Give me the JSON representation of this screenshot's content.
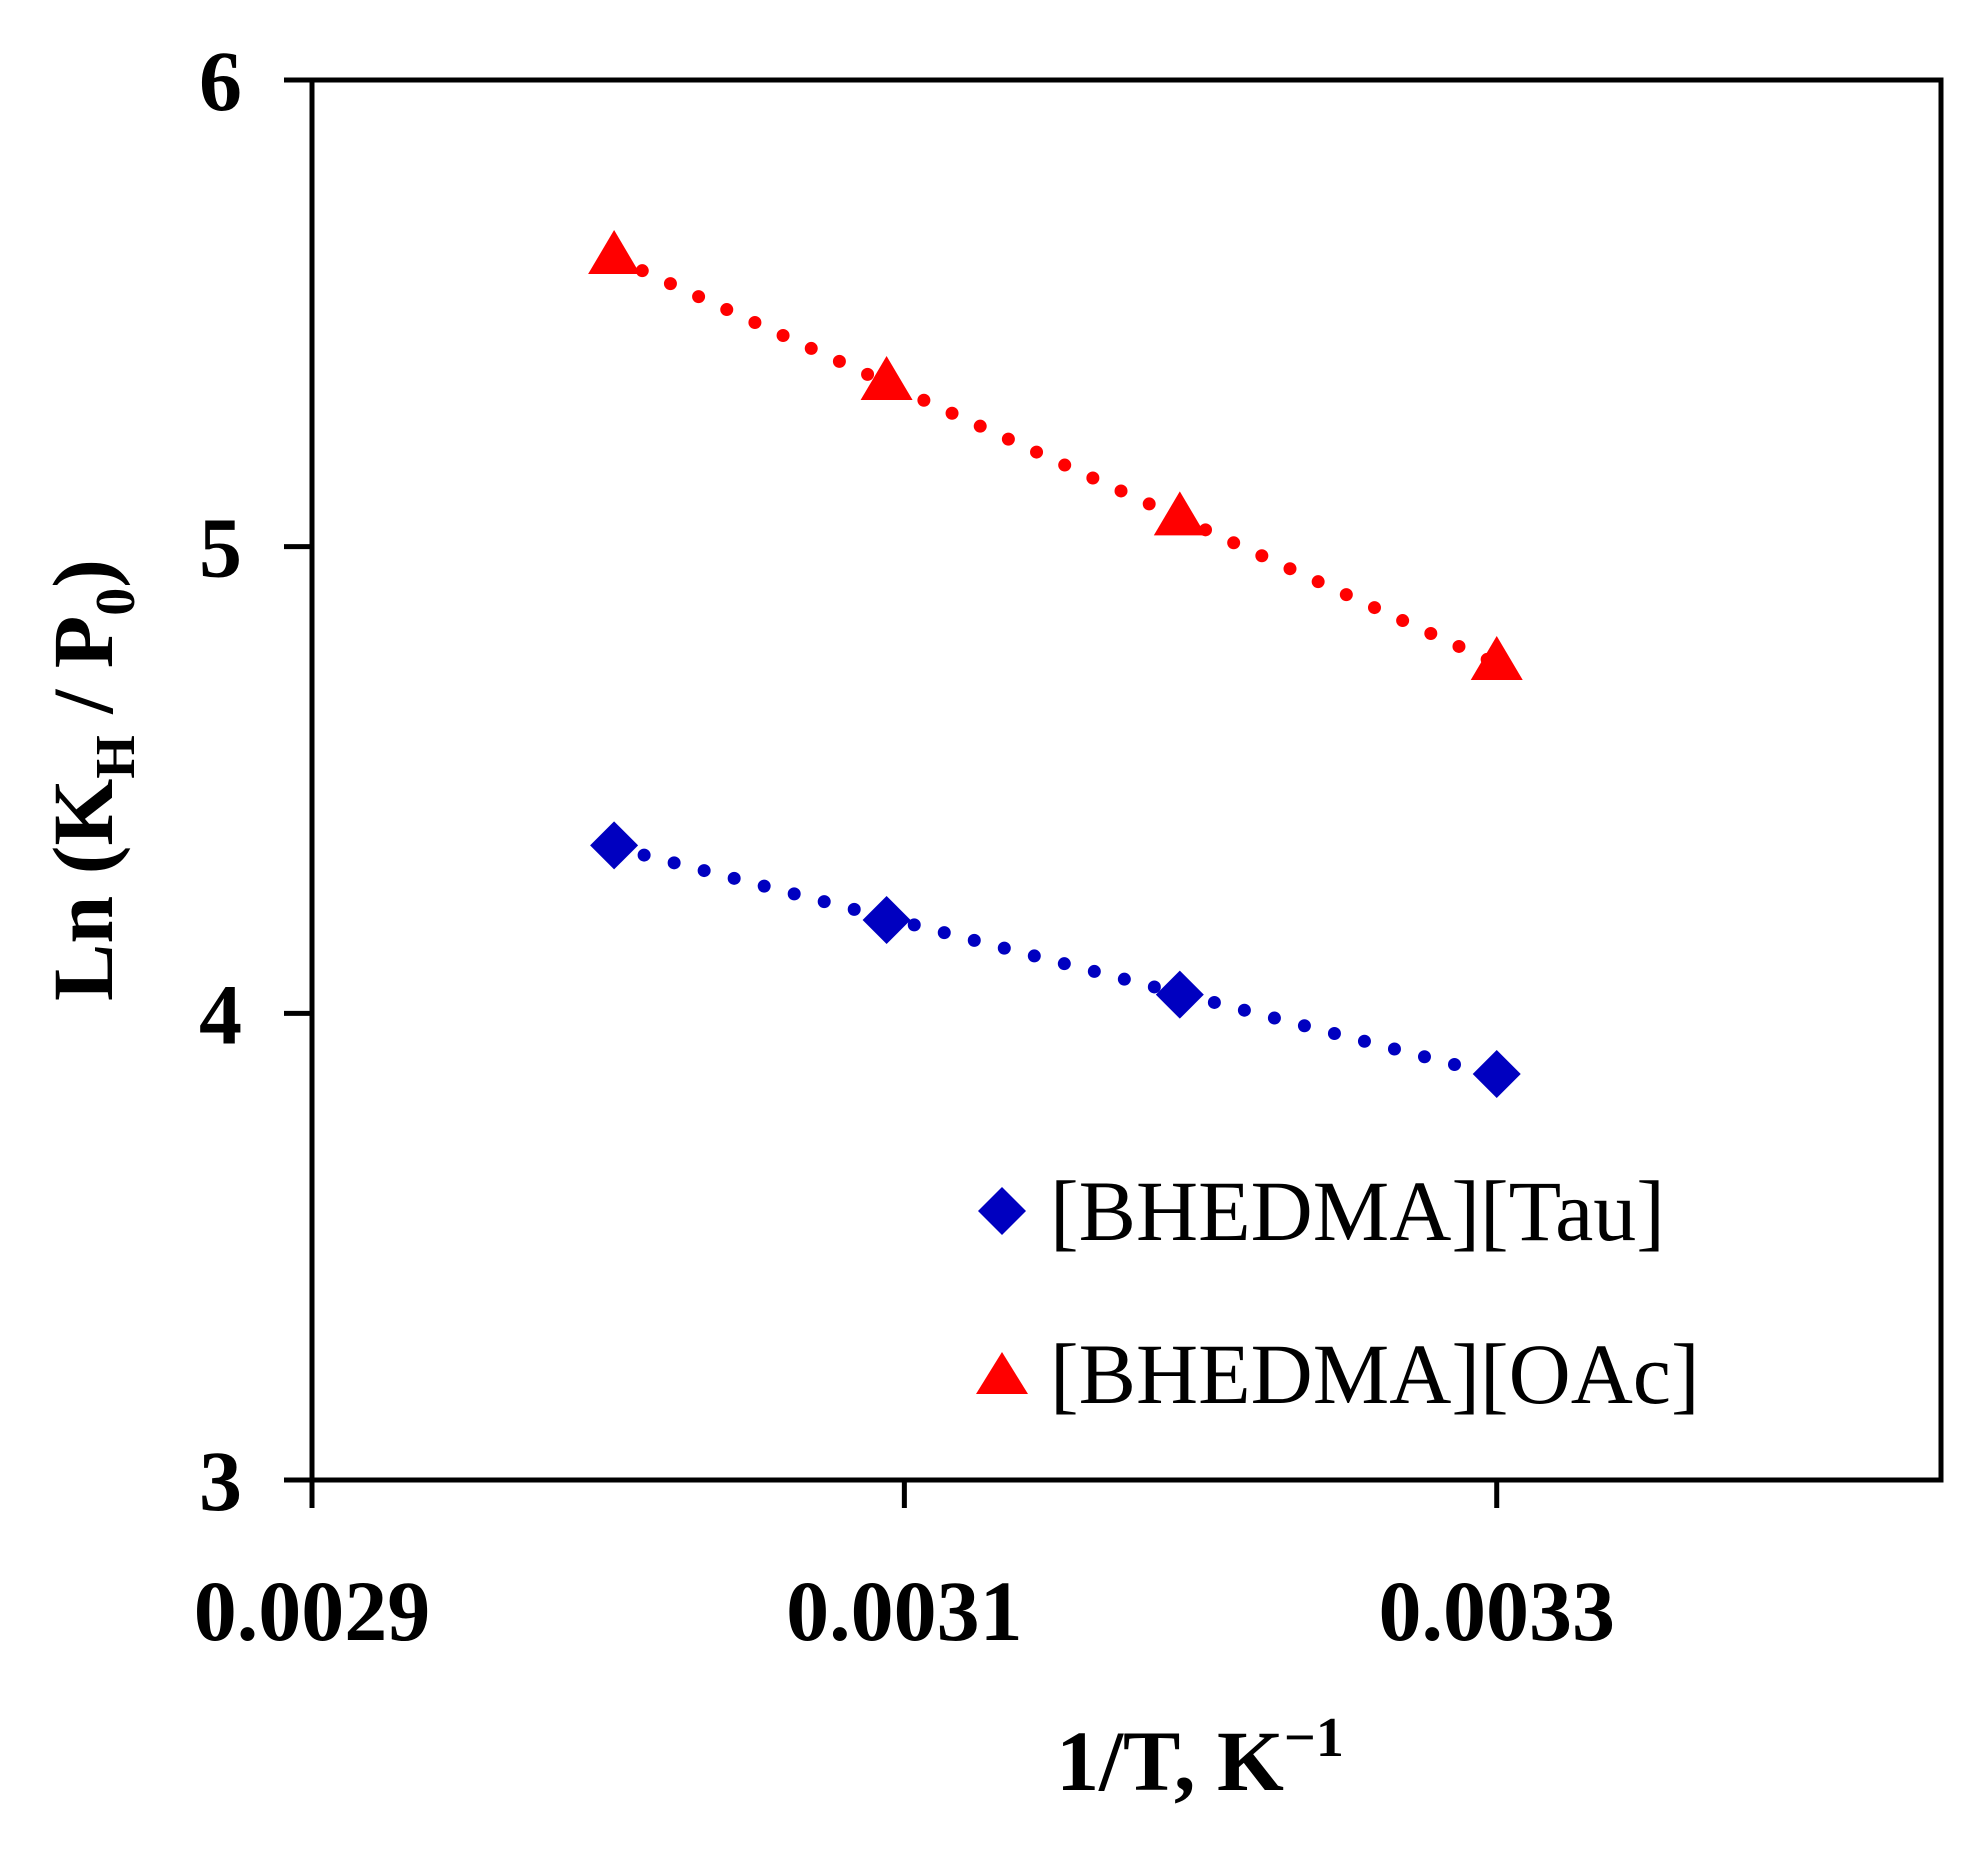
{
  "chart_data": {
    "type": "scatter",
    "title": "",
    "xlabel": "1/T, K",
    "xlabel_superscript": "−1",
    "ylabel_parts": [
      "Ln (K",
      "H",
      " / P",
      "0",
      ")"
    ],
    "xlim": [
      0.0029,
      0.00345
    ],
    "ylim": [
      3,
      6
    ],
    "xticks": [
      0.0029,
      0.0031,
      0.0033
    ],
    "xtick_labels": [
      "0.0029",
      "0.0031",
      "0.0033"
    ],
    "yticks": [
      3,
      4,
      5,
      6
    ],
    "ytick_labels": [
      "3",
      "4",
      "5",
      "6"
    ],
    "grid": false,
    "legend_position": "bottom-right",
    "series": [
      {
        "name": "[BHEDMA][Tau]",
        "marker": "diamond",
        "color": "#0000c0",
        "trendline": "dotted-linear",
        "x": [
          0.003002,
          0.003094,
          0.003193,
          0.0033
        ],
        "y": [
          4.36,
          4.2,
          4.04,
          3.87
        ]
      },
      {
        "name": "[BHEDMA][OAc]",
        "marker": "triangle",
        "color": "#ff0000",
        "trendline": "dotted-linear",
        "x": [
          0.003002,
          0.003094,
          0.003193,
          0.0033
        ],
        "y": [
          5.62,
          5.35,
          5.06,
          4.75
        ]
      }
    ]
  }
}
